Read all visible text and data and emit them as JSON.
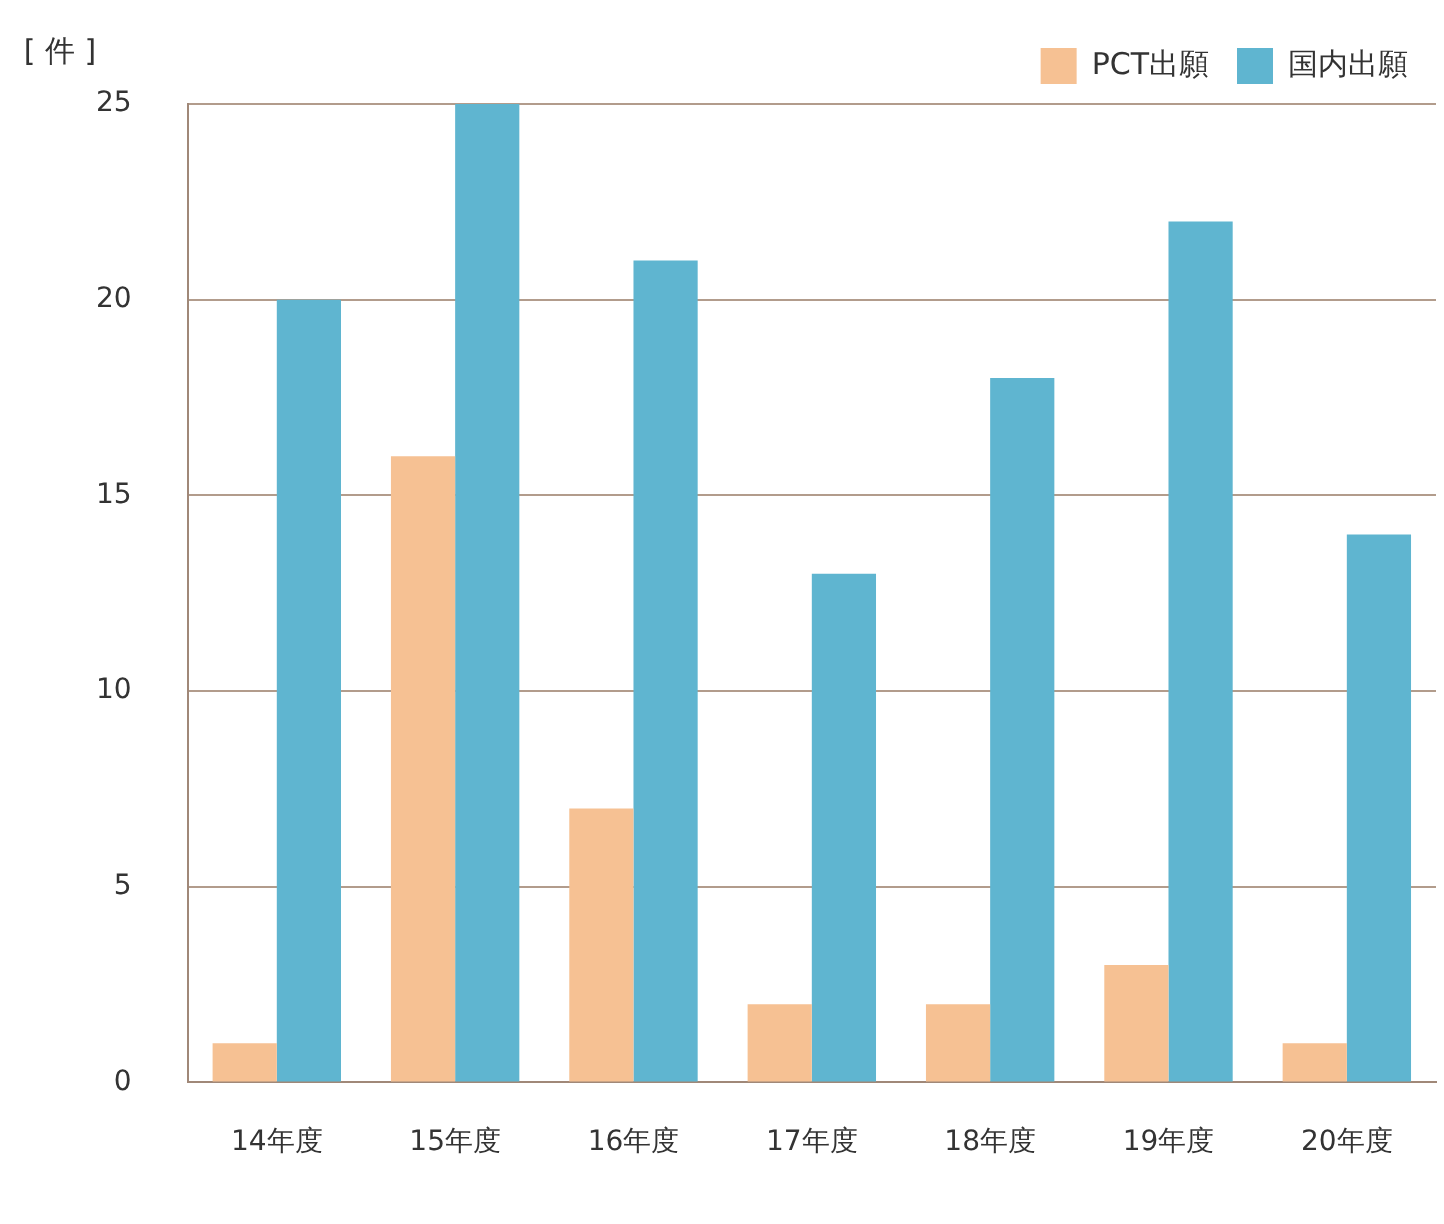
{
  "chart_data": {
    "type": "bar",
    "ylabel": "[ 件 ]",
    "categories": [
      "14年度",
      "15年度",
      "16年度",
      "17年度",
      "18年度",
      "19年度",
      "20年度"
    ],
    "series": [
      {
        "name": "PCT出願",
        "color": "#f6c193",
        "values": [
          1,
          16,
          7,
          2,
          2,
          3,
          1
        ]
      },
      {
        "name": "国内出願",
        "color": "#5fb5d0",
        "values": [
          20,
          25,
          21,
          13,
          18,
          22,
          14
        ]
      }
    ],
    "ylim": [
      0,
      25
    ],
    "yticks": [
      0,
      5,
      10,
      15,
      20,
      25
    ],
    "grid": "y",
    "legend": "top right"
  }
}
